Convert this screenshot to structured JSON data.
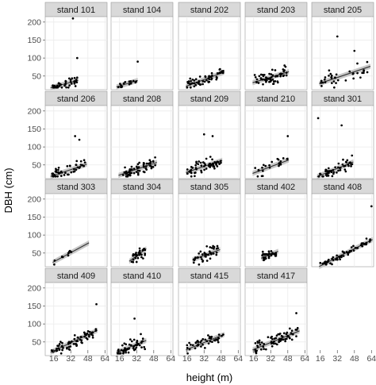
{
  "chart_data": {
    "type": "scatter",
    "layout": "faceted small multiples, 5 columns x 4 rows, shared axes",
    "xlabel": "height (m)",
    "ylabel": "DBH (cm)",
    "xlim": [
      8,
      66
    ],
    "ylim": [
      12,
      215
    ],
    "x_ticks": [
      16,
      32,
      48,
      64
    ],
    "y_ticks": [
      50,
      100,
      150,
      200
    ],
    "grid": true,
    "trend": "linear fit with grey confidence band per panel",
    "colors": {
      "points": "#000000",
      "fit_line": "#333333",
      "band": "#bdbdbd",
      "panel_bg": "#ffffff",
      "grid": "#ebebeb",
      "strip_bg": "#d9d9d9"
    },
    "panels": [
      {
        "label": "stand 101",
        "n": 40,
        "xr": [
          14,
          38
        ],
        "fit": [
          0.8,
          7
        ],
        "noise": 10,
        "extra": [
          [
            34,
            210
          ],
          [
            38,
            100
          ]
        ]
      },
      {
        "label": "stand 104",
        "n": 15,
        "xr": [
          14,
          32
        ],
        "fit": [
          0.9,
          8
        ],
        "noise": 6,
        "extra": [
          [
            33,
            90
          ]
        ]
      },
      {
        "label": "stand 202",
        "n": 60,
        "xr": [
          16,
          50
        ],
        "fit": [
          1.1,
          5
        ],
        "noise": 10,
        "extra": []
      },
      {
        "label": "stand 203",
        "n": 60,
        "xr": [
          16,
          48
        ],
        "fit": [
          0.9,
          18
        ],
        "noise": 15,
        "extra": []
      },
      {
        "label": "stand 205",
        "n": 35,
        "xr": [
          16,
          62
        ],
        "fit": [
          1.0,
          14
        ],
        "noise": 18,
        "extra": [
          [
            32,
            160
          ],
          [
            48,
            120
          ]
        ]
      },
      {
        "label": "stand 206",
        "n": 45,
        "xr": [
          14,
          46
        ],
        "fit": [
          1.0,
          5
        ],
        "noise": 14,
        "extra": [
          [
            36,
            130
          ],
          [
            40,
            120
          ]
        ]
      },
      {
        "label": "stand 208",
        "n": 60,
        "xr": [
          16,
          50
        ],
        "fit": [
          1.0,
          6
        ],
        "noise": 12,
        "extra": []
      },
      {
        "label": "stand 209",
        "n": 60,
        "xr": [
          16,
          48
        ],
        "fit": [
          1.0,
          14
        ],
        "noise": 14,
        "extra": [
          [
            32,
            135
          ],
          [
            40,
            130
          ]
        ]
      },
      {
        "label": "stand 210",
        "n": 25,
        "xr": [
          16,
          48
        ],
        "fit": [
          1.1,
          10
        ],
        "noise": 12,
        "extra": [
          [
            48,
            130
          ]
        ]
      },
      {
        "label": "stand 301",
        "n": 55,
        "xr": [
          14,
          46
        ],
        "fit": [
          1.2,
          2
        ],
        "noise": 12,
        "extra": [
          [
            14,
            180
          ],
          [
            36,
            160
          ]
        ]
      },
      {
        "label": "stand 303",
        "n": 10,
        "xr": [
          16,
          48
        ],
        "fit": [
          1.6,
          0
        ],
        "noise": 6,
        "extra": []
      },
      {
        "label": "stand 304",
        "n": 35,
        "xr": [
          26,
          40
        ],
        "fit": [
          2.2,
          -28
        ],
        "noise": 12,
        "extra": []
      },
      {
        "label": "stand 305",
        "n": 40,
        "xr": [
          22,
          46
        ],
        "fit": [
          1.1,
          8
        ],
        "noise": 12,
        "extra": []
      },
      {
        "label": "stand 402",
        "n": 35,
        "xr": [
          24,
          38
        ],
        "fit": [
          1.2,
          8
        ],
        "noise": 9,
        "extra": []
      },
      {
        "label": "stand 408",
        "n": 60,
        "xr": [
          16,
          64
        ],
        "fit": [
          1.5,
          -10
        ],
        "noise": 7,
        "extra": [
          [
            64,
            180
          ]
        ]
      },
      {
        "label": "stand 409",
        "n": 70,
        "xr": [
          14,
          56
        ],
        "fit": [
          1.4,
          3
        ],
        "noise": 12,
        "extra": [
          [
            56,
            155
          ]
        ]
      },
      {
        "label": "stand 410",
        "n": 55,
        "xr": [
          14,
          40
        ],
        "fit": [
          1.2,
          5
        ],
        "noise": 14,
        "extra": [
          [
            30,
            115
          ]
        ]
      },
      {
        "label": "stand 415",
        "n": 45,
        "xr": [
          16,
          50
        ],
        "fit": [
          1.2,
          10
        ],
        "noise": 12,
        "extra": []
      },
      {
        "label": "stand 417",
        "n": 70,
        "xr": [
          16,
          58
        ],
        "fit": [
          1.2,
          10
        ],
        "noise": 12,
        "extra": [
          [
            56,
            130
          ]
        ]
      }
    ]
  }
}
